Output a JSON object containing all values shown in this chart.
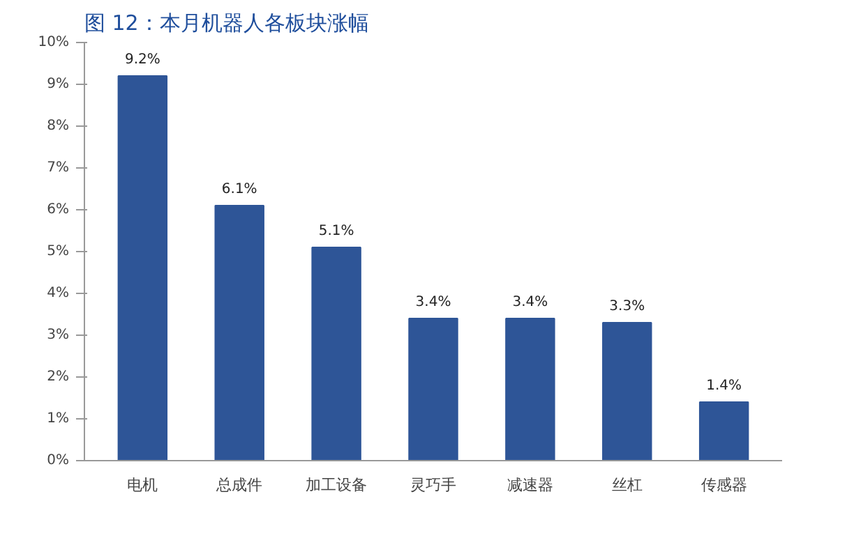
{
  "chart_data": {
    "type": "bar",
    "title": "图 12：本月机器人各板块涨幅",
    "categories": [
      "电机",
      "总成件",
      "加工设备",
      "灵巧手",
      "减速器",
      "丝杠",
      "传感器"
    ],
    "values": [
      9.2,
      6.1,
      5.1,
      3.4,
      3.4,
      3.3,
      1.4
    ],
    "value_labels": [
      "9.2%",
      "6.1%",
      "5.1%",
      "3.4%",
      "3.4%",
      "3.3%",
      "1.4%"
    ],
    "color": "#2e5597",
    "ylim": [
      0,
      10
    ],
    "yticks": [
      {
        "value": 0,
        "label": "0%"
      },
      {
        "value": 1,
        "label": "1%"
      },
      {
        "value": 2,
        "label": "2%"
      },
      {
        "value": 3,
        "label": "3%"
      },
      {
        "value": 4,
        "label": "4%"
      },
      {
        "value": 5,
        "label": "5%"
      },
      {
        "value": 6,
        "label": "6%"
      },
      {
        "value": 7,
        "label": "7%"
      },
      {
        "value": 8,
        "label": "8%"
      },
      {
        "value": 9,
        "label": "9%"
      },
      {
        "value": 10,
        "label": "10%"
      }
    ],
    "grid": false
  }
}
